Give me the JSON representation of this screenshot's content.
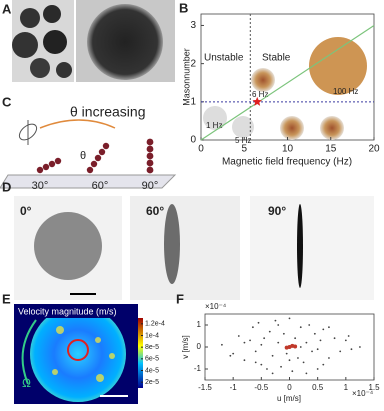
{
  "panels": {
    "a": {
      "label": "A"
    },
    "b": {
      "label": "B",
      "type": "line",
      "x_label": "Magnetic field frequency (Hz)",
      "y_label": "Masonnumber",
      "xlim": [
        0,
        20
      ],
      "ylim": [
        0,
        3.3
      ],
      "xticks": [
        0,
        5,
        10,
        15,
        20
      ],
      "yticks": [
        0,
        1,
        2,
        3
      ],
      "x": [
        0,
        20
      ],
      "values": [
        0,
        3
      ],
      "color": "#7cc47c",
      "threshold": {
        "x": 5.7,
        "y": 1
      },
      "critical_point": {
        "x": 6.5,
        "y": 1
      },
      "regions": [
        "Unstable",
        "Stable"
      ],
      "annotations": [
        "1 Hz",
        "5 Hz",
        "6 Hz",
        "100 Hz"
      ]
    },
    "c": {
      "label": "C",
      "title": "θ increasing",
      "symbol": "θ",
      "angles": [
        "30°",
        "60°",
        "90°"
      ]
    },
    "d": {
      "label": "D",
      "angles": [
        "0°",
        "60°",
        "90°"
      ]
    },
    "e": {
      "label": "E",
      "title": "Velocity magnitude (m/s)",
      "symbol": "Ω",
      "colorbar_lim": [
        1e-05,
        0.00013
      ],
      "colorbar_ticks": [
        {
          "value": 0.00012,
          "label": "1.2e-4"
        },
        {
          "value": 0.0001,
          "label": "1e-4"
        },
        {
          "value": 8e-05,
          "label": "8e-5"
        },
        {
          "value": 6e-05,
          "label": "6e-5"
        },
        {
          "value": 4e-05,
          "label": "4e-5"
        },
        {
          "value": 2e-05,
          "label": "2e-5"
        }
      ]
    },
    "f": {
      "label": "F",
      "type": "scatter",
      "x_label": "u [m/s]",
      "y_label": "v [m/s]",
      "x_multiplier": "×10⁻⁴",
      "y_multiplier": "×10⁻⁴",
      "xlim": [
        -1.5,
        1.5
      ],
      "ylim": [
        -1.5,
        1.5
      ],
      "xticks": [
        -1.5,
        -1,
        -0.5,
        0,
        0.5,
        1,
        1.5
      ],
      "yticks": [
        -1,
        0,
        1
      ],
      "series": [
        {
          "color": "#444444",
          "x": [
            -1.2,
            -1.0,
            -0.9,
            -0.8,
            -0.7,
            -0.65,
            -0.6,
            -0.55,
            -0.5,
            -0.45,
            -0.4,
            -0.35,
            -0.3,
            -0.25,
            -0.2,
            -0.15,
            -0.1,
            -0.05,
            0,
            0.05,
            0.1,
            0.15,
            0.2,
            0.25,
            0.3,
            0.35,
            0.4,
            0.45,
            0.5,
            0.55,
            0.6,
            0.7,
            0.8,
            0.9,
            1.0,
            1.1,
            1.25,
            -0.8,
            -0.3,
            0.3,
            0.7,
            -0.5,
            0.5,
            -1.05,
            1.05,
            0.0,
            -0.6,
            0.6,
            -0.2,
            0.2
          ],
          "values": [
            0.1,
            -0.3,
            0.5,
            -0.6,
            0.3,
            0.9,
            -0.2,
            1.1,
            -0.8,
            0.4,
            -1.0,
            0.7,
            -0.4,
            1.2,
            0.2,
            -0.9,
            0.6,
            -0.3,
            1.3,
            -1.1,
            0.4,
            -0.5,
            0.9,
            -0.7,
            0.2,
            1.0,
            -0.2,
            0.6,
            -1.0,
            0.3,
            0.8,
            -0.5,
            0.4,
            -0.2,
            0.3,
            -0.1,
            0.0,
            0.2,
            -1.2,
            -1.2,
            0.9,
            0.1,
            -0.1,
            -0.4,
            0.5,
            -0.6,
            -0.7,
            -0.8,
            1.0,
            0.0
          ]
        },
        {
          "color": "#c0392b",
          "x": [
            0,
            0.05,
            -0.05,
            0.1
          ],
          "values": [
            0,
            0.05,
            -0.03,
            0.02
          ]
        }
      ]
    }
  }
}
